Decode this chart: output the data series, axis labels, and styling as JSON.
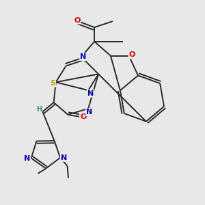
{
  "bg_color": "#e8e8e8",
  "bond_color": "#2a2a2a",
  "bond_width": 1.4,
  "dbo": 0.012,
  "atom_colors": {
    "O": "#dd0000",
    "N": "#0000cc",
    "S": "#bbaa00",
    "H": "#3a8888",
    "C": "#2a2a2a"
  },
  "figsize": [
    3.0,
    3.0
  ],
  "dpi": 100
}
